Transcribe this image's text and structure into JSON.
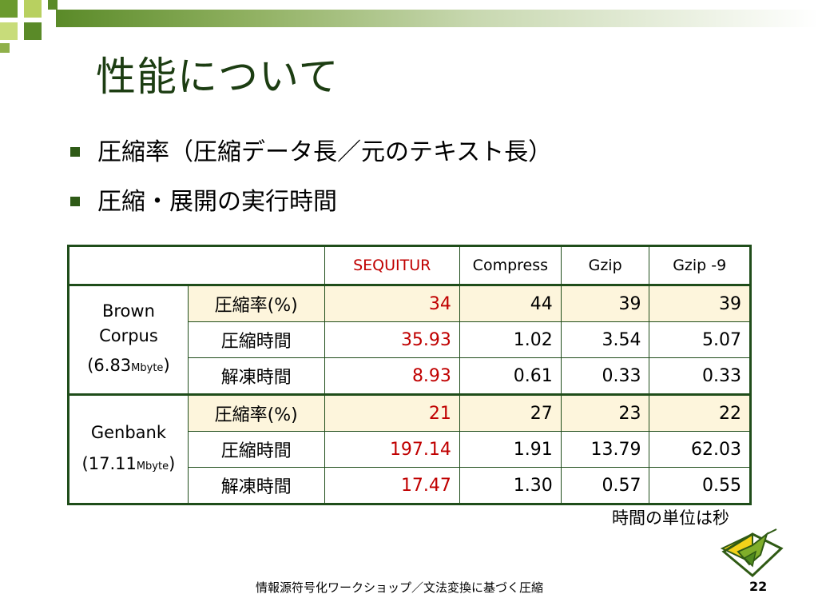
{
  "slide": {
    "title": "性能について",
    "bullets": [
      "圧縮率（圧縮データ長／元のテキスト長）",
      "圧縮・展開の実行時間"
    ],
    "unit_note": "時間の単位は秒",
    "footer": "情報源符号化ワークショップ／文法変換に基づく圧縮",
    "page_number": "22"
  },
  "table": {
    "columns": [
      "SEQUITUR",
      "Compress",
      "Gzip",
      "Gzip -9"
    ],
    "groups": [
      {
        "corpus_line1": "Brown",
        "corpus_line2": "Corpus",
        "size_open": "(6.83",
        "size_unit": "Mbyte",
        "size_close": ")",
        "rows": [
          {
            "metric": "圧縮率(%)",
            "values": [
              "34",
              "44",
              "39",
              "39"
            ]
          },
          {
            "metric": "圧縮時間",
            "values": [
              "35.93",
              "1.02",
              "3.54",
              "5.07"
            ]
          },
          {
            "metric": "解凍時間",
            "values": [
              "8.93",
              "0.61",
              "0.33",
              "0.33"
            ]
          }
        ]
      },
      {
        "corpus_line1": "Genbank",
        "corpus_line2": "",
        "size_open": "(17.11",
        "size_unit": "Mbyte",
        "size_close": ")",
        "rows": [
          {
            "metric": "圧縮率(%)",
            "values": [
              "21",
              "27",
              "23",
              "22"
            ]
          },
          {
            "metric": "圧縮時間",
            "values": [
              "197.14",
              "1.91",
              "13.79",
              "62.03"
            ]
          },
          {
            "metric": "解凍時間",
            "values": [
              "17.47",
              "1.30",
              "0.57",
              "0.55"
            ]
          }
        ]
      }
    ]
  },
  "colors": {
    "accent_green": "#1c3d12",
    "sequitur_red": "#c00000",
    "highlight_row": "#fdf5dc"
  },
  "icons": [
    "decorative-squares-icon",
    "origami-crane-icon"
  ]
}
